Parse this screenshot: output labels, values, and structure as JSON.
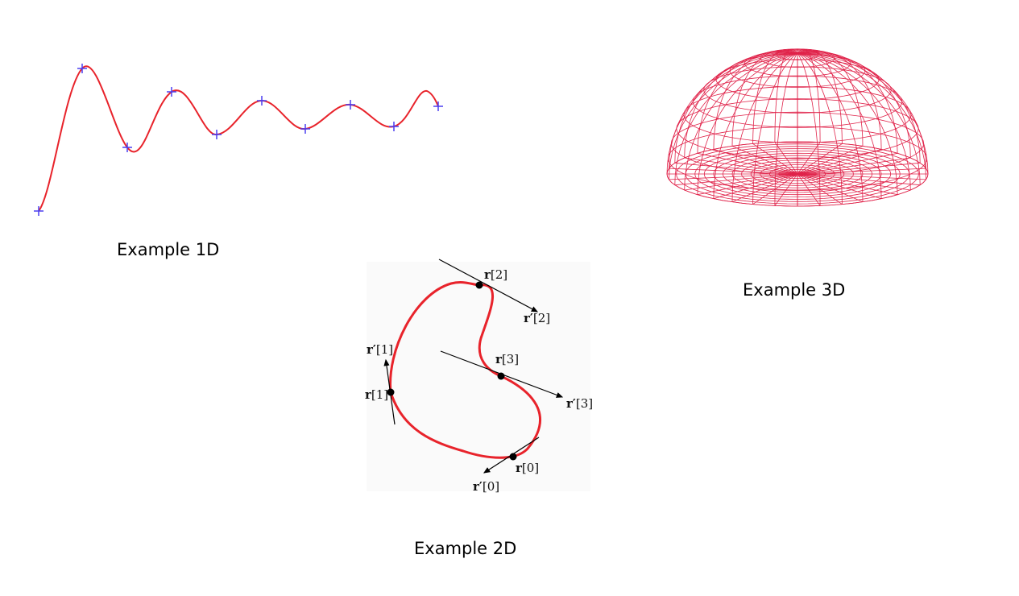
{
  "captions": {
    "one_d": "Example 1D",
    "two_d": "Example 2D",
    "three_d": "Example 3D"
  },
  "colors": {
    "curve": "#e8232b",
    "knot_marker": "#4a3ff0",
    "wireframe": "#e0234a",
    "tangent": "#000000",
    "panel_bg": "#fafafa"
  },
  "example_2d": {
    "points": [
      {
        "name": "r[0]",
        "symbol": "r",
        "index": "[0]"
      },
      {
        "name": "r[1]",
        "symbol": "r",
        "index": "[1]"
      },
      {
        "name": "r[2]",
        "symbol": "r",
        "index": "[2]"
      },
      {
        "name": "r[3]",
        "symbol": "r",
        "index": "[3]"
      }
    ],
    "tangents": [
      {
        "name": "r'[0]",
        "symbol": "r′",
        "index": "[0]"
      },
      {
        "name": "r'[1]",
        "symbol": "r′",
        "index": "[1]"
      },
      {
        "name": "r'[2]",
        "symbol": "r′",
        "index": "[2]"
      },
      {
        "name": "r'[3]",
        "symbol": "r′",
        "index": "[3]"
      }
    ]
  }
}
